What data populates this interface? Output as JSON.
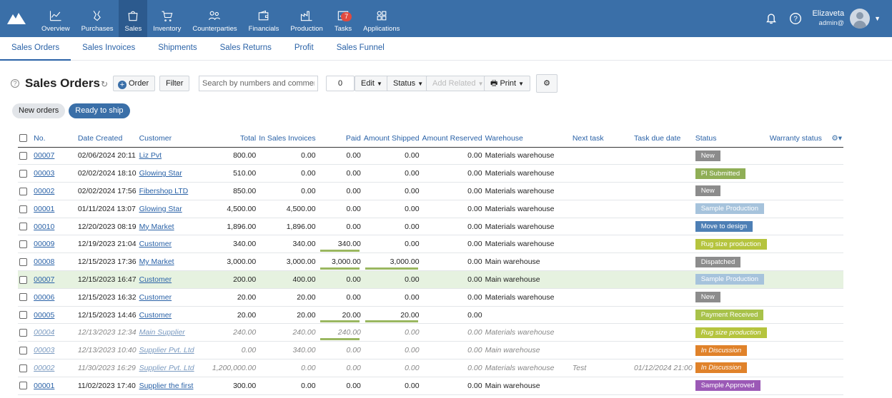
{
  "nav": [
    {
      "label": "Overview",
      "icon": "chart-icon"
    },
    {
      "label": "Purchases",
      "icon": "handshake-icon"
    },
    {
      "label": "Sales",
      "icon": "shopping-bag-icon"
    },
    {
      "label": "Inventory",
      "icon": "cart-icon"
    },
    {
      "label": "Counterparties",
      "icon": "people-icon"
    },
    {
      "label": "Financials",
      "icon": "wallet-icon"
    },
    {
      "label": "Production",
      "icon": "factory-icon"
    },
    {
      "label": "Tasks",
      "icon": "tasks-icon",
      "badge": "7"
    },
    {
      "label": "Applications",
      "icon": "apps-icon"
    }
  ],
  "user": {
    "name": "Elizaveta",
    "role": "admin@"
  },
  "subnav": [
    "Sales Orders",
    "Sales Invoices",
    "Shipments",
    "Sales Returns",
    "Profit",
    "Sales Funnel"
  ],
  "toolbar": {
    "help": "?",
    "title": "Sales Orders",
    "order": "Order",
    "filter": "Filter",
    "search_placeholder": "Search by numbers and comments",
    "count": "0",
    "edit": "Edit",
    "status": "Status",
    "add": "Add Related",
    "print": "Print"
  },
  "chips": [
    "New orders",
    "Ready to ship"
  ],
  "columns": [
    "No.",
    "Date Created",
    "Customer",
    "Total",
    "In Sales Invoices",
    "Paid",
    "Amount Shipped",
    "Amount Reserved",
    "Warehouse",
    "Next task",
    "Task due date",
    "Status",
    "Warranty status"
  ],
  "rows": [
    {
      "no": "00007",
      "date": "02/06/2024 20:11",
      "customer": "Liz Pvt",
      "total": "800.00",
      "invoiced": "0.00",
      "paid": "0.00",
      "shipped": "0.00",
      "reserved": "0.00",
      "warehouse": "Materials warehouse",
      "next": "",
      "due": "",
      "status": "New",
      "color": "#8c8c8c"
    },
    {
      "no": "00003",
      "date": "02/02/2024 18:10",
      "customer": "Glowing Star",
      "total": "510.00",
      "invoiced": "0.00",
      "paid": "0.00",
      "shipped": "0.00",
      "reserved": "0.00",
      "warehouse": "Materials warehouse",
      "next": "",
      "due": "",
      "status": "PI Submitted",
      "color": "#8fae56"
    },
    {
      "no": "00002",
      "date": "02/02/2024 17:56",
      "customer": "Fibershop LTD",
      "total": "850.00",
      "invoiced": "0.00",
      "paid": "0.00",
      "shipped": "0.00",
      "reserved": "0.00",
      "warehouse": "Materials warehouse",
      "next": "",
      "due": "",
      "status": "New",
      "color": "#8c8c8c"
    },
    {
      "no": "00001",
      "date": "01/11/2024 13:07",
      "customer": "Glowing Star",
      "total": "4,500.00",
      "invoiced": "4,500.00",
      "paid": "0.00",
      "shipped": "0.00",
      "reserved": "0.00",
      "warehouse": "Materials warehouse",
      "next": "",
      "due": "",
      "status": "Sample Production",
      "color": "#a6c3dc"
    },
    {
      "no": "00010",
      "date": "12/20/2023 08:19",
      "customer": "My Market",
      "total": "1,896.00",
      "invoiced": "1,896.00",
      "paid": "0.00",
      "shipped": "0.00",
      "reserved": "0.00",
      "warehouse": "Materials warehouse",
      "next": "",
      "due": "",
      "status": "Move to design",
      "color": "#4d7fb5"
    },
    {
      "no": "00009",
      "date": "12/19/2023 21:04",
      "customer": "Customer",
      "total": "340.00",
      "invoiced": "340.00",
      "paid": "340.00",
      "shipped": "0.00",
      "reserved": "0.00",
      "warehouse": "Materials warehouse",
      "next": "",
      "due": "",
      "status": "Rug size production",
      "color": "#b5c43e",
      "paidbar": true
    },
    {
      "no": "00008",
      "date": "12/15/2023 17:36",
      "customer": "My Market",
      "total": "3,000.00",
      "invoiced": "3,000.00",
      "paid": "3,000.00",
      "shipped": "3,000.00",
      "reserved": "0.00",
      "warehouse": "Main warehouse",
      "next": "",
      "due": "",
      "status": "Dispatched",
      "color": "#8c8c8c",
      "paidbar": true,
      "shipbar": true
    },
    {
      "no": "00007",
      "date": "12/15/2023 16:47",
      "customer": "Customer",
      "total": "200.00",
      "invoiced": "400.00",
      "paid": "0.00",
      "shipped": "0.00",
      "reserved": "0.00",
      "warehouse": "Main warehouse",
      "next": "",
      "due": "",
      "status": "Sample Production",
      "color": "#a6c3dc",
      "hl": true
    },
    {
      "no": "00006",
      "date": "12/15/2023 16:32",
      "customer": "Customer",
      "total": "20.00",
      "invoiced": "20.00",
      "paid": "0.00",
      "shipped": "0.00",
      "reserved": "0.00",
      "warehouse": "Materials warehouse",
      "next": "",
      "due": "",
      "status": "New",
      "color": "#8c8c8c"
    },
    {
      "no": "00005",
      "date": "12/15/2023 14:46",
      "customer": "Customer",
      "total": "20.00",
      "invoiced": "20.00",
      "paid": "20.00",
      "shipped": "20.00",
      "reserved": "0.00",
      "warehouse": "",
      "next": "",
      "due": "",
      "status": "Payment Received",
      "color": "#a8c24a",
      "paidbar": true,
      "shipbar": true
    },
    {
      "no": "00004",
      "date": "12/13/2023 12:34",
      "customer": "Main Supplier",
      "total": "240.00",
      "invoiced": "240.00",
      "paid": "240.00",
      "shipped": "0.00",
      "reserved": "0.00",
      "warehouse": "Materials warehouse",
      "next": "",
      "due": "",
      "status": "Rug size production",
      "color": "#b5c43e",
      "dim": true,
      "paidbar": true
    },
    {
      "no": "00003",
      "date": "12/13/2023 10:40",
      "customer": "Supplier Pvt. Ltd",
      "total": "0.00",
      "invoiced": "340.00",
      "paid": "0.00",
      "shipped": "0.00",
      "reserved": "0.00",
      "warehouse": "Main warehouse",
      "next": "",
      "due": "",
      "status": "In Discussion",
      "color": "#e0822a",
      "dim": true
    },
    {
      "no": "00002",
      "date": "11/30/2023 16:29",
      "customer": "Supplier Pvt. Ltd",
      "total": "1,200,000.00",
      "invoiced": "0.00",
      "paid": "0.00",
      "shipped": "0.00",
      "reserved": "0.00",
      "warehouse": "Materials warehouse",
      "next": "Test",
      "due": "01/12/2024 21:00",
      "status": "In Discussion",
      "color": "#e0822a",
      "dim": true
    },
    {
      "no": "00001",
      "date": "11/02/2023 17:40",
      "customer": "Supplier the first",
      "total": "300.00",
      "invoiced": "0.00",
      "paid": "0.00",
      "shipped": "0.00",
      "reserved": "0.00",
      "warehouse": "Main warehouse",
      "next": "",
      "due": "",
      "status": "Sample Approved",
      "color": "#9b59b6"
    }
  ]
}
